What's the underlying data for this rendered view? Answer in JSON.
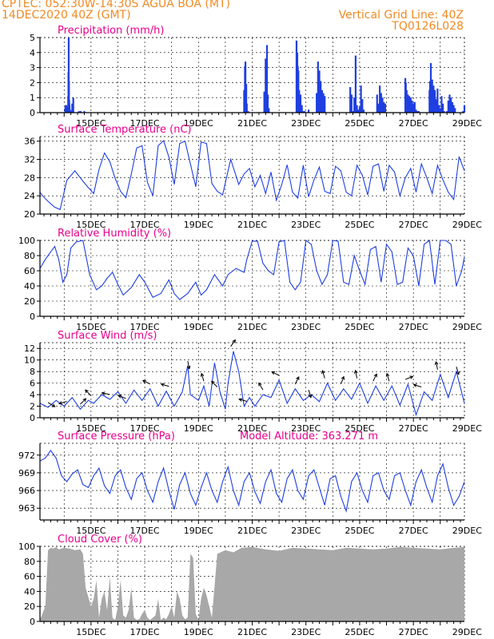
{
  "header": {
    "line1": "CPTEC:   052:30W-14:30S   AGUA BOA (MT)",
    "line2": "14DEC2020 40Z (GMT)",
    "grid_note": "Vertical Grid Line: 40Z",
    "code": "TQ0126L028"
  },
  "chart_data": [
    {
      "type": "bar",
      "title": "Precipitation (mm/h)",
      "x": [
        0.04,
        0.05,
        0.06,
        0.08,
        0.1,
        0.11,
        0.12,
        0.14,
        0.15,
        0.16,
        0.17,
        0.18,
        0.19,
        0.2,
        0.21,
        0.22,
        0.23,
        0.24,
        0.25,
        0.3,
        0.34,
        0.55,
        0.62,
        0.75,
        6.7,
        6.73,
        6.75,
        6.78,
        6.8,
        6.85,
        7.45,
        7.5,
        7.55,
        7.58,
        7.62,
        8.65,
        8.68,
        8.7,
        8.72,
        8.75,
        8.8,
        8.85,
        8.9,
        8.95,
        9.1,
        9.4,
        9.45,
        9.5,
        9.55,
        9.6,
        9.65,
        9.7,
        10.65,
        10.7,
        10.75,
        10.8,
        10.85,
        10.9,
        10.95,
        11.0,
        11.05,
        11.1,
        11.15,
        11.65,
        11.7,
        11.75,
        11.8,
        11.85,
        11.9,
        11.95,
        12.7,
        12.72,
        12.75,
        12.8,
        12.85,
        12.9,
        12.95,
        13.0,
        13.05,
        13.1,
        13.15,
        13.2,
        13.6,
        13.62,
        13.65,
        13.7,
        13.75,
        13.8,
        13.85,
        13.9,
        13.95,
        14.0,
        14.05,
        14.1,
        14.15,
        14.25,
        14.3,
        14.35,
        14.4,
        14.45,
        14.5,
        14.55,
        14.85,
        14.9
      ],
      "values": [
        0.3,
        0.4,
        0.5,
        0.5,
        0.4,
        0.2,
        0.1,
        0.1,
        1.1,
        2.7,
        5.0,
        2.1,
        0.8,
        0.5,
        0.2,
        0.2,
        0.1,
        0.1,
        0.1,
        0.6,
        1.0,
        0.1,
        0.1,
        0.1,
        1.5,
        3.1,
        3.4,
        1.9,
        0.6,
        0.1,
        1.4,
        3.6,
        4.5,
        1.2,
        0.3,
        4.8,
        4.0,
        3.1,
        2.8,
        1.5,
        1.2,
        0.5,
        0.1,
        0.1,
        0.2,
        1.3,
        3.4,
        2.8,
        2.1,
        1.5,
        1.3,
        1.1,
        1.7,
        1.2,
        0.1,
        1.0,
        3.8,
        0.5,
        0.2,
        0.4,
        1.8,
        0.9,
        0.2,
        1.2,
        0.6,
        1.8,
        1.3,
        1.0,
        0.7,
        0.6,
        2.3,
        2.0,
        1.5,
        1.2,
        1.1,
        1.0,
        0.8,
        0.6,
        0.7,
        0.2,
        0.1,
        0.1,
        1.5,
        2.1,
        3.3,
        2.2,
        1.8,
        1.5,
        0.9,
        1.6,
        0.5,
        0.3,
        1.1,
        0.6,
        0.1,
        0.1,
        0.8,
        1.2,
        1.0,
        0.7,
        0.5,
        0.3,
        0.1,
        0.5
      ],
      "ylim": [
        0,
        5
      ],
      "yticks": [
        0,
        1,
        2,
        3,
        4,
        5
      ],
      "xlim": [
        -0.9,
        14.9
      ],
      "xticks": [
        "15DEC",
        "17DEC",
        "19DEC",
        "21DEC",
        "23DEC",
        "25DEC",
        "27DEC",
        "29DEC"
      ],
      "color": "#1f3fe0"
    },
    {
      "type": "line",
      "title": "Surface Temperature (nC)",
      "x": [
        -0.9,
        -0.8,
        -0.6,
        -0.45,
        -0.35,
        -0.15,
        0.1,
        0.4,
        0.7,
        0.9,
        1.1,
        1.3,
        1.5,
        1.7,
        1.9,
        2.1,
        2.3,
        2.5,
        2.7,
        2.9,
        3.1,
        3.3,
        3.5,
        3.7,
        3.9,
        4.1,
        4.3,
        4.5,
        4.7,
        4.9,
        5.1,
        5.3,
        5.5,
        5.7,
        5.9,
        6.2,
        6.5,
        6.7,
        6.9,
        7.1,
        7.3,
        7.5,
        7.7,
        7.9,
        8.1,
        8.3,
        8.5,
        8.7,
        8.9,
        9.1,
        9.3,
        9.5,
        9.7,
        9.9,
        10.1,
        10.3,
        10.5,
        10.7,
        10.9,
        11.1,
        11.3,
        11.5,
        11.7,
        11.9,
        12.1,
        12.3,
        12.5,
        12.7,
        12.9,
        13.1,
        13.3,
        13.5,
        13.7,
        13.9,
        14.1,
        14.3,
        14.5,
        14.7,
        14.9
      ],
      "values": [
        24.8,
        24.0,
        22.8,
        22.0,
        21.5,
        21.0,
        27.4,
        29.5,
        27.2,
        25.8,
        24.5,
        29.8,
        33.4,
        31.5,
        27.8,
        25.0,
        23.6,
        28.8,
        34.5,
        35.0,
        27.0,
        24.0,
        35.0,
        36.1,
        32.5,
        26.5,
        35.5,
        36.0,
        31.0,
        26.0,
        35.8,
        35.5,
        26.7,
        25.0,
        24.2,
        32.0,
        26.5,
        28.8,
        30.0,
        26.0,
        28.5,
        24.5,
        29.2,
        23.0,
        26.5,
        30.8,
        24.8,
        23.5,
        30.7,
        23.8,
        27.5,
        30.3,
        25.0,
        24.5,
        30.5,
        29.5,
        24.8,
        24.0,
        30.7,
        28.5,
        24.2,
        30.5,
        31.0,
        25.0,
        30.7,
        29.2,
        24.0,
        28.0,
        30.0,
        24.8,
        31.0,
        28.0,
        24.5,
        30.7,
        27.5,
        24.8,
        23.2,
        32.6,
        29.5
      ],
      "ylim": [
        20,
        37
      ],
      "yticks": [
        20,
        24,
        28,
        32,
        36
      ],
      "xlim": [
        -0.9,
        14.9
      ],
      "xticks": [
        "15DEC",
        "17DEC",
        "19DEC",
        "21DEC",
        "23DEC",
        "25DEC",
        "27DEC",
        "29DEC"
      ],
      "color": "#1f3fe0"
    },
    {
      "type": "line",
      "title": "Relative Humidity (%)",
      "x": [
        -0.9,
        -0.7,
        -0.5,
        -0.35,
        -0.2,
        -0.05,
        0.1,
        0.25,
        0.45,
        0.7,
        0.95,
        1.2,
        1.4,
        1.6,
        1.8,
        2.0,
        2.2,
        2.5,
        2.8,
        3.0,
        3.3,
        3.6,
        3.9,
        4.1,
        4.3,
        4.6,
        4.9,
        5.1,
        5.3,
        5.6,
        5.9,
        6.1,
        6.4,
        6.7,
        6.8,
        7.0,
        7.2,
        7.4,
        7.6,
        7.8,
        8.0,
        8.2,
        8.4,
        8.6,
        8.8,
        9.0,
        9.2,
        9.4,
        9.6,
        9.8,
        10.0,
        10.2,
        10.4,
        10.6,
        10.8,
        11.0,
        11.2,
        11.4,
        11.6,
        11.8,
        12.0,
        12.2,
        12.4,
        12.6,
        12.8,
        13.0,
        13.2,
        13.4,
        13.6,
        13.8,
        14.0,
        14.2,
        14.4,
        14.6,
        14.8,
        14.9
      ],
      "values": [
        63,
        75,
        85,
        92,
        75,
        45,
        55,
        90,
        98,
        100,
        55,
        35,
        40,
        50,
        58,
        42,
        28,
        38,
        55,
        45,
        25,
        30,
        48,
        30,
        22,
        30,
        45,
        28,
        35,
        55,
        40,
        55,
        63,
        58,
        75,
        99,
        99,
        70,
        60,
        55,
        98,
        100,
        45,
        35,
        45,
        100,
        95,
        60,
        42,
        55,
        100,
        99,
        45,
        42,
        80,
        60,
        42,
        88,
        92,
        45,
        95,
        85,
        42,
        45,
        90,
        80,
        40,
        95,
        100,
        42,
        100,
        100,
        95,
        40,
        60,
        78
      ],
      "ylim": [
        0,
        100
      ],
      "yticks": [
        0,
        20,
        40,
        60,
        80,
        100
      ],
      "xlim": [
        -0.9,
        14.9
      ],
      "xticks": [
        "15DEC",
        "17DEC",
        "19DEC",
        "21DEC",
        "23DEC",
        "25DEC",
        "27DEC",
        "29DEC"
      ],
      "color": "#1f3fe0"
    },
    {
      "type": "line",
      "title": "Surface Wind (m/s)",
      "x": [
        -0.9,
        -0.6,
        -0.3,
        0.0,
        0.3,
        0.6,
        0.9,
        1.1,
        1.4,
        1.7,
        2.0,
        2.3,
        2.6,
        2.9,
        3.2,
        3.5,
        3.8,
        4.1,
        4.4,
        4.6,
        4.7,
        5.0,
        5.2,
        5.4,
        5.6,
        5.8,
        6.0,
        6.1,
        6.3,
        6.5,
        6.7,
        6.9,
        7.1,
        7.4,
        7.7,
        8.0,
        8.3,
        8.6,
        8.9,
        9.2,
        9.5,
        9.8,
        10.1,
        10.4,
        10.7,
        11.0,
        11.3,
        11.6,
        11.9,
        12.2,
        12.5,
        12.8,
        13.1,
        13.4,
        13.7,
        14.0,
        14.3,
        14.6,
        14.9
      ],
      "values": [
        2.5,
        1.8,
        3.0,
        2.0,
        3.5,
        1.5,
        3.0,
        2.5,
        4.0,
        3.2,
        4.5,
        2.5,
        4.8,
        3.0,
        5.0,
        2.0,
        4.6,
        2.0,
        4.5,
        9.0,
        4.0,
        3.0,
        5.5,
        2.0,
        9.5,
        4.5,
        1.5,
        6.0,
        11.5,
        8.0,
        2.0,
        3.5,
        2.0,
        4.0,
        3.5,
        6.5,
        2.5,
        5.0,
        3.0,
        4.0,
        2.8,
        6.0,
        3.0,
        5.0,
        3.2,
        6.0,
        2.5,
        5.5,
        3.0,
        5.5,
        2.2,
        5.8,
        0.5,
        4.5,
        3.0,
        7.5,
        3.5,
        8.0,
        2.5
      ],
      "ylim": [
        0,
        13
      ],
      "yticks": [
        0,
        2,
        4,
        6,
        8,
        10,
        12
      ],
      "xlim": [
        -0.9,
        14.9
      ],
      "xticks": [
        "15DEC",
        "17DEC",
        "19DEC",
        "21DEC",
        "23DEC",
        "25DEC",
        "27DEC",
        "29DEC"
      ],
      "color": "#1f3fe0"
    },
    {
      "type": "line",
      "title": "Surface Pressure (hPa)",
      "annotation": "Model Altitude: 363.271 m",
      "x": [
        -0.9,
        -0.7,
        -0.5,
        -0.3,
        -0.1,
        0.1,
        0.3,
        0.5,
        0.7,
        0.9,
        1.1,
        1.3,
        1.5,
        1.7,
        1.9,
        2.1,
        2.3,
        2.5,
        2.7,
        2.9,
        3.1,
        3.3,
        3.5,
        3.7,
        3.9,
        4.1,
        4.3,
        4.5,
        4.7,
        4.9,
        5.1,
        5.3,
        5.5,
        5.7,
        5.9,
        6.1,
        6.3,
        6.5,
        6.7,
        6.9,
        7.1,
        7.3,
        7.5,
        7.7,
        7.9,
        8.1,
        8.3,
        8.5,
        8.7,
        8.9,
        9.1,
        9.3,
        9.5,
        9.7,
        9.9,
        10.1,
        10.3,
        10.5,
        10.7,
        10.9,
        11.1,
        11.3,
        11.5,
        11.7,
        11.9,
        12.1,
        12.3,
        12.5,
        12.7,
        12.9,
        13.1,
        13.3,
        13.5,
        13.7,
        13.9,
        14.1,
        14.3,
        14.5,
        14.7,
        14.9
      ],
      "values": [
        971.0,
        971.5,
        972.8,
        971.5,
        968.5,
        967.5,
        968.8,
        969.5,
        967.0,
        966.5,
        968.5,
        969.8,
        966.8,
        965.5,
        968.5,
        969.5,
        966.5,
        964.5,
        968.0,
        969.0,
        966.0,
        964.0,
        967.5,
        969.8,
        966.0,
        962.8,
        967.0,
        969.0,
        965.5,
        963.5,
        966.5,
        969.0,
        966.0,
        964.0,
        967.5,
        970.0,
        966.0,
        963.5,
        967.5,
        969.0,
        965.8,
        963.8,
        967.5,
        969.5,
        965.5,
        964.0,
        968.0,
        969.5,
        966.0,
        964.5,
        968.5,
        969.5,
        966.5,
        963.5,
        968.0,
        968.5,
        965.0,
        962.5,
        967.5,
        969.0,
        966.0,
        964.0,
        968.5,
        969.0,
        966.0,
        964.5,
        968.5,
        969.0,
        966.0,
        963.5,
        967.5,
        969.5,
        966.5,
        964.0,
        968.5,
        970.5,
        966.5,
        963.5,
        965.0,
        967.5
      ],
      "ylim": [
        961,
        974
      ],
      "yticks": [
        963,
        966,
        969,
        972
      ],
      "xlim": [
        -0.9,
        14.9
      ],
      "xticks": [
        "15DEC",
        "17DEC",
        "19DEC",
        "21DEC",
        "23DEC",
        "25DEC",
        "27DEC",
        "29DEC"
      ],
      "color": "#1f3fe0"
    },
    {
      "type": "area",
      "title": "Cloud Cover (%)",
      "x": [
        -0.9,
        -0.7,
        -0.6,
        -0.5,
        -0.4,
        -0.3,
        -0.2,
        0.0,
        0.2,
        0.4,
        0.6,
        0.7,
        0.8,
        1.0,
        1.1,
        1.2,
        1.3,
        1.4,
        1.5,
        1.6,
        1.7,
        1.8,
        1.9,
        2.0,
        2.1,
        2.2,
        2.3,
        2.4,
        2.5,
        2.6,
        2.7,
        2.8,
        2.9,
        3.0,
        3.1,
        3.2,
        3.3,
        3.4,
        3.5,
        3.6,
        3.7,
        3.8,
        3.9,
        4.0,
        4.1,
        4.2,
        4.3,
        4.4,
        4.5,
        4.6,
        4.7,
        4.8,
        4.9,
        5.0,
        5.1,
        5.2,
        5.3,
        5.5,
        5.7,
        6.0,
        6.3,
        6.6,
        7.0,
        7.5,
        8.0,
        8.5,
        9.0,
        9.5,
        10.0,
        10.5,
        11.0,
        11.5,
        12.0,
        12.5,
        13.0,
        13.5,
        14.0,
        14.5,
        14.9
      ],
      "values": [
        2,
        20,
        95,
        98,
        97,
        99,
        96,
        98,
        97,
        95,
        96,
        90,
        45,
        20,
        30,
        55,
        5,
        30,
        40,
        15,
        60,
        5,
        2,
        20,
        55,
        8,
        5,
        15,
        45,
        5,
        2,
        3,
        10,
        15,
        5,
        2,
        5,
        8,
        30,
        2,
        5,
        3,
        10,
        20,
        5,
        40,
        30,
        8,
        3,
        5,
        90,
        85,
        10,
        2,
        30,
        45,
        35,
        5,
        90,
        95,
        92,
        98,
        99,
        96,
        94,
        98,
        97,
        96,
        95,
        98,
        97,
        96,
        97,
        99,
        98,
        97,
        96,
        98,
        99
      ],
      "ylim": [
        0,
        100
      ],
      "yticks": [
        0,
        20,
        40,
        60,
        80,
        100
      ],
      "xlim": [
        -0.9,
        14.9
      ],
      "xticks": [
        "15DEC",
        "17DEC",
        "19DEC",
        "21DEC",
        "23DEC",
        "25DEC",
        "27DEC",
        "29DEC"
      ],
      "color": "#a8a8a8"
    }
  ],
  "wind_arrows": [
    {
      "x": -0.6,
      "u": 1,
      "v": -0.6
    },
    {
      "x": 0.1,
      "u": -1,
      "v": -0.3
    },
    {
      "x": 0.6,
      "u": 1,
      "v": 1
    },
    {
      "x": 1.0,
      "u": -1,
      "v": 1
    },
    {
      "x": 1.7,
      "u": -1,
      "v": 0.2
    },
    {
      "x": 2.3,
      "u": -1,
      "v": 0.4
    },
    {
      "x": 3.2,
      "u": -1,
      "v": 0.5
    },
    {
      "x": 3.9,
      "u": -1,
      "v": 0.3
    },
    {
      "x": 4.6,
      "u": 0.2,
      "v": -1
    },
    {
      "x": 5.2,
      "u": -0.3,
      "v": 1
    },
    {
      "x": 5.7,
      "u": -1,
      "v": 1
    },
    {
      "x": 6.2,
      "u": 0.7,
      "v": 1
    },
    {
      "x": 6.8,
      "u": -1,
      "v": 0.3
    },
    {
      "x": 7.4,
      "u": -0.6,
      "v": 1
    },
    {
      "x": 8.0,
      "u": -1,
      "v": 0.5
    },
    {
      "x": 8.6,
      "u": 0.5,
      "v": 1
    },
    {
      "x": 9.1,
      "u": 0.3,
      "v": -1
    },
    {
      "x": 9.7,
      "u": -0.3,
      "v": 1
    },
    {
      "x": 10.3,
      "u": 0.4,
      "v": 1
    },
    {
      "x": 10.9,
      "u": -0.2,
      "v": 1
    },
    {
      "x": 11.5,
      "u": 0.5,
      "v": 1
    },
    {
      "x": 12.1,
      "u": -0.3,
      "v": 1
    },
    {
      "x": 12.7,
      "u": 1,
      "v": 0.4
    },
    {
      "x": 13.3,
      "u": -1,
      "v": 0.3
    },
    {
      "x": 13.9,
      "u": -0.2,
      "v": 1
    },
    {
      "x": 14.6,
      "u": 0.3,
      "v": -1
    }
  ]
}
